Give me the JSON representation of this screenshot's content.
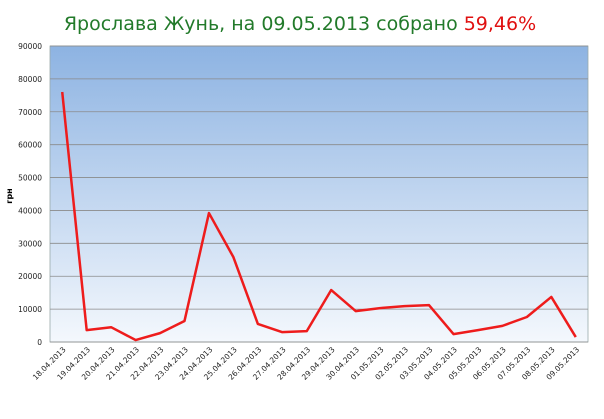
{
  "chart_data": {
    "type": "line",
    "title": "Ярослава Жунь, на 09.05.2013 собрано",
    "title_highlight": "59,46%",
    "y_label": "грн",
    "categories": [
      "18.04.2013",
      "19.04.2013",
      "20.04.2013",
      "21.04.2013",
      "22.04.2013",
      "23.04.2013",
      "24.04.2013",
      "25.04.2013",
      "26.04.2013",
      "27.04.2013",
      "28.04.2013",
      "29.04.2013",
      "30.04.2013",
      "01.05.2013",
      "02.05.2013",
      "03.05.2013",
      "04.05.2013",
      "05.05.2013",
      "06.05.2013",
      "07.05.2013",
      "08.05.2013",
      "09.05.2013"
    ],
    "values": [
      76000,
      3600,
      4500,
      600,
      2700,
      6400,
      39200,
      25800,
      5500,
      3000,
      3300,
      15800,
      9400,
      10300,
      10900,
      11200,
      2400,
      3600,
      4900,
      7600,
      13700,
      1500
    ],
    "color": "#ee1c1c",
    "ylim": [
      0,
      90000
    ],
    "yticks": [
      0,
      10000,
      20000,
      30000,
      40000,
      50000,
      60000,
      70000,
      80000,
      90000
    ],
    "grid": true
  }
}
